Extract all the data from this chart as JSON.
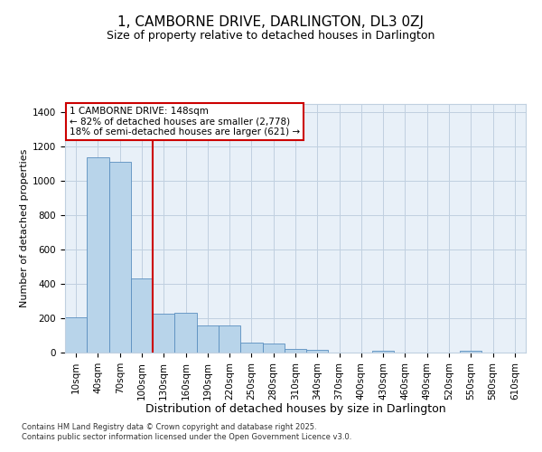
{
  "title": "1, CAMBORNE DRIVE, DARLINGTON, DL3 0ZJ",
  "subtitle": "Size of property relative to detached houses in Darlington",
  "xlabel": "Distribution of detached houses by size in Darlington",
  "ylabel": "Number of detached properties",
  "categories": [
    "10sqm",
    "40sqm",
    "70sqm",
    "100sqm",
    "130sqm",
    "160sqm",
    "190sqm",
    "220sqm",
    "250sqm",
    "280sqm",
    "310sqm",
    "340sqm",
    "370sqm",
    "400sqm",
    "430sqm",
    "460sqm",
    "490sqm",
    "520sqm",
    "550sqm",
    "580sqm",
    "610sqm"
  ],
  "values": [
    205,
    1140,
    1110,
    430,
    225,
    230,
    160,
    160,
    60,
    55,
    20,
    15,
    0,
    0,
    12,
    0,
    0,
    0,
    10,
    0,
    0
  ],
  "bar_color": "#b8d4ea",
  "bar_edge_color": "#5a8fc0",
  "grid_color": "#c0d0e0",
  "background_color": "#e8f0f8",
  "vline_x_index": 4,
  "vline_color": "#cc0000",
  "annotation_text": "1 CAMBORNE DRIVE: 148sqm\n← 82% of detached houses are smaller (2,778)\n18% of semi-detached houses are larger (621) →",
  "annotation_box_color": "#ffffff",
  "annotation_box_edge": "#cc0000",
  "ylim": [
    0,
    1450
  ],
  "yticks": [
    0,
    200,
    400,
    600,
    800,
    1000,
    1200,
    1400
  ],
  "footnote": "Contains HM Land Registry data © Crown copyright and database right 2025.\nContains public sector information licensed under the Open Government Licence v3.0.",
  "title_fontsize": 11,
  "subtitle_fontsize": 9,
  "xlabel_fontsize": 9,
  "ylabel_fontsize": 8,
  "tick_fontsize": 7.5,
  "annotation_fontsize": 7.5,
  "footnote_fontsize": 6
}
